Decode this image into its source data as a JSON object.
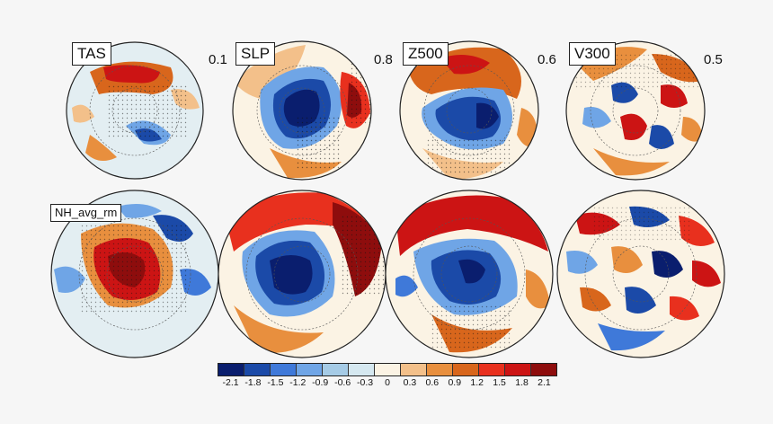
{
  "rows": [
    {
      "panels": [
        {
          "label": "TAS",
          "value": "0.1"
        },
        {
          "label": "SLP",
          "value": "0.8"
        },
        {
          "label": "Z500",
          "value": "0.6"
        },
        {
          "label": "V300",
          "value": "0.5"
        }
      ]
    },
    {
      "panels": [
        {
          "label": "NH_avg_rm",
          "value": ""
        },
        {
          "label": "",
          "value": ""
        },
        {
          "label": "",
          "value": ""
        },
        {
          "label": "",
          "value": ""
        }
      ]
    }
  ],
  "colorbar": {
    "colors": [
      "#0a1e6e",
      "#1b4aa8",
      "#3f79d9",
      "#6fa5e6",
      "#a5cbe6",
      "#d5e8f0",
      "#fbf3e4",
      "#f3c08a",
      "#e88f3e",
      "#d8661c",
      "#e8301e",
      "#cc1414",
      "#8e0d0d"
    ],
    "ticks": [
      "-2.1",
      "-1.8",
      "-1.5",
      "-1.2",
      "-0.9",
      "-0.6",
      "-0.3",
      "0",
      "0.3",
      "0.6",
      "0.9",
      "1.2",
      "1.5",
      "1.8",
      "2.1"
    ]
  },
  "colors": {
    "land_outline": "#111111",
    "grid_line": "#555555",
    "map_background": "#fbf3e4"
  }
}
